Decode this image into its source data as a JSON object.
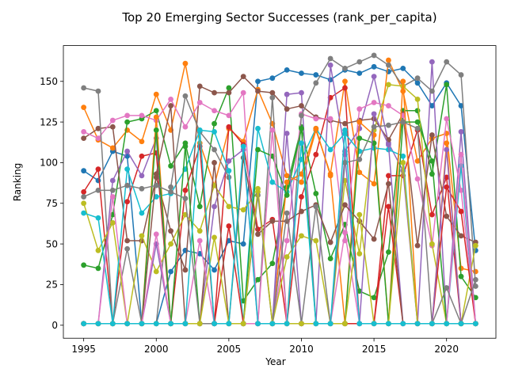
{
  "chart_data": {
    "type": "line",
    "title": "Top 20 Emerging Sector Successes (rank_per_capita)",
    "xlabel": "Year",
    "ylabel": "Ranking",
    "xlim": [
      1993.6,
      2023.4
    ],
    "ylim": [
      -8,
      172
    ],
    "xticks": [
      1995,
      2000,
      2005,
      2010,
      2015,
      2020
    ],
    "yticks": [
      0,
      25,
      50,
      75,
      100,
      125,
      150
    ],
    "grid": false,
    "legend": "none",
    "markers": "circle",
    "x": [
      1995,
      1996,
      1997,
      1998,
      1999,
      2000,
      2001,
      2002,
      2003,
      2004,
      2005,
      2006,
      2007,
      2008,
      2009,
      2010,
      2011,
      2012,
      2013,
      2014,
      2015,
      2016,
      2017,
      2018,
      2019,
      2020,
      2021,
      2022
    ],
    "series": [
      {
        "color": "#1f77b4",
        "values": [
          95,
          89,
          107,
          104,
          1,
          1,
          33,
          46,
          44,
          34,
          52,
          50,
          150,
          152,
          157,
          155,
          154,
          151,
          157,
          155,
          159,
          156,
          158,
          149,
          135,
          149,
          135,
          46
        ]
      },
      {
        "color": "#ff7f0e",
        "values": [
          134,
          114,
          109,
          120,
          113,
          142,
          120,
          161,
          112,
          86,
          121,
          113,
          145,
          124,
          92,
          88,
          120,
          93,
          150,
          94,
          87,
          163,
          144,
          101,
          115,
          118,
          35,
          33
        ]
      },
      {
        "color": "#2ca02c",
        "values": [
          37,
          35,
          68,
          125,
          127,
          132,
          98,
          112,
          73,
          124,
          146,
          15,
          28,
          38,
          85,
          122,
          81,
          41,
          62,
          21,
          17,
          45,
          132,
          132,
          93,
          148,
          30,
          17
        ]
      },
      {
        "color": "#d62728",
        "values": [
          82,
          96,
          1,
          76,
          104,
          106,
          1,
          83,
          110,
          1,
          122,
          111,
          59,
          65,
          1,
          79,
          105,
          140,
          146,
          1,
          1,
          92,
          92,
          120,
          68,
          91,
          1,
          1
        ]
      },
      {
        "color": "#9467bd",
        "values": [
          1,
          1,
          89,
          107,
          92,
          115,
          1,
          1,
          1,
          73,
          101,
          108,
          1,
          1,
          142,
          143,
          1,
          160,
          107,
          121,
          153,
          112,
          95,
          1,
          162,
          1,
          119,
          1
        ]
      },
      {
        "color": "#8c564b",
        "values": [
          115,
          121,
          122,
          52,
          52,
          91,
          58,
          34,
          147,
          143,
          143,
          153,
          144,
          143,
          133,
          135,
          128,
          126,
          124,
          126,
          127,
          114,
          130,
          49,
          117,
          67,
          55,
          51
        ]
      },
      {
        "color": "#e377c2",
        "values": [
          119,
          115,
          126,
          129,
          129,
          126,
          139,
          122,
          137,
          132,
          129,
          143,
          1,
          1,
          52,
          130,
          127,
          127,
          52,
          133,
          137,
          135,
          129,
          90,
          49,
          127,
          83,
          1
        ]
      },
      {
        "color": "#7f7f7f",
        "values": [
          146,
          144,
          1,
          47,
          1,
          1,
          85,
          141,
          119,
          108,
          91,
          1,
          1,
          140,
          1,
          129,
          149,
          164,
          158,
          162,
          166,
          160,
          147,
          152,
          144,
          162,
          154,
          24
        ]
      },
      {
        "color": "#bcbd22",
        "values": [
          75,
          46,
          63,
          1,
          55,
          33,
          50,
          68,
          58,
          86,
          73,
          71,
          82,
          1,
          42,
          55,
          52,
          1,
          89,
          44,
          120,
          148,
          147,
          139,
          50,
          1,
          1,
          49
        ]
      },
      {
        "color": "#17becf",
        "values": [
          69,
          66,
          1,
          96,
          69,
          79,
          81,
          96,
          120,
          119,
          95,
          1,
          121,
          88,
          82,
          102,
          121,
          108,
          118,
          107,
          109,
          108,
          104,
          1,
          1,
          1,
          98,
          1
        ]
      }
    ],
    "extra_series": [
      {
        "color": "#1f77b4",
        "values": [
          1,
          1,
          1,
          1,
          1,
          1,
          1,
          1,
          1,
          1,
          1,
          1,
          1,
          1,
          1,
          1,
          1,
          1,
          1,
          1,
          1,
          1,
          1,
          1,
          1,
          1,
          1,
          1
        ]
      },
      {
        "color": "#ff7f0e",
        "values": [
          1,
          1,
          1,
          1,
          1,
          128,
          1,
          1,
          1,
          1,
          1,
          1,
          1,
          1,
          88,
          93,
          121,
          92,
          1,
          125,
          117,
          1,
          150,
          1,
          1,
          112,
          1,
          1
        ]
      },
      {
        "color": "#2ca02c",
        "values": [
          1,
          1,
          1,
          1,
          1,
          120,
          1,
          110,
          1,
          1,
          1,
          1,
          108,
          104,
          80,
          121,
          1,
          1,
          1,
          115,
          112,
          1,
          125,
          125,
          101,
          1,
          1,
          1
        ]
      },
      {
        "color": "#d62728",
        "values": [
          1,
          1,
          1,
          1,
          1,
          1,
          1,
          1,
          1,
          1,
          61,
          1,
          1,
          1,
          1,
          1,
          1,
          1,
          1,
          1,
          1,
          73,
          1,
          1,
          1,
          85,
          70,
          1
        ]
      },
      {
        "color": "#9467bd",
        "values": [
          1,
          1,
          1,
          1,
          1,
          50,
          1,
          1,
          1,
          1,
          1,
          1,
          1,
          1,
          118,
          1,
          1,
          1,
          105,
          1,
          130,
          111,
          1,
          1,
          1,
          108,
          1,
          1
        ]
      },
      {
        "color": "#8c564b",
        "values": [
          1,
          1,
          1,
          1,
          1,
          93,
          135,
          1,
          1,
          100,
          1,
          103,
          56,
          64,
          64,
          70,
          74,
          51,
          74,
          64,
          53,
          87,
          1,
          1,
          1,
          1,
          1,
          1
        ]
      },
      {
        "color": "#e377c2",
        "values": [
          1,
          1,
          79,
          1,
          1,
          56,
          1,
          1,
          52,
          1,
          1,
          1,
          1,
          120,
          1,
          1,
          1,
          1,
          57,
          1,
          1,
          1,
          1,
          1,
          1,
          1,
          105,
          1
        ]
      },
      {
        "color": "#7f7f7f",
        "values": [
          79,
          83,
          83,
          86,
          84,
          86,
          82,
          78,
          1,
          1,
          1,
          1,
          80,
          1,
          69,
          1,
          73,
          1,
          100,
          102,
          122,
          123,
          125,
          121,
          1,
          23,
          1,
          28
        ]
      },
      {
        "color": "#bcbd22",
        "values": [
          1,
          1,
          1,
          1,
          1,
          1,
          1,
          1,
          1,
          54,
          1,
          1,
          84,
          1,
          1,
          1,
          1,
          1,
          1,
          68,
          1,
          1,
          100,
          1,
          1,
          1,
          1,
          1
        ]
      },
      {
        "color": "#17becf",
        "values": [
          1,
          1,
          1,
          1,
          1,
          1,
          1,
          1,
          120,
          1,
          1,
          110,
          1,
          1,
          1,
          112,
          1,
          1,
          120,
          1,
          1,
          1,
          1,
          1,
          1,
          1,
          1,
          1
        ]
      }
    ]
  }
}
